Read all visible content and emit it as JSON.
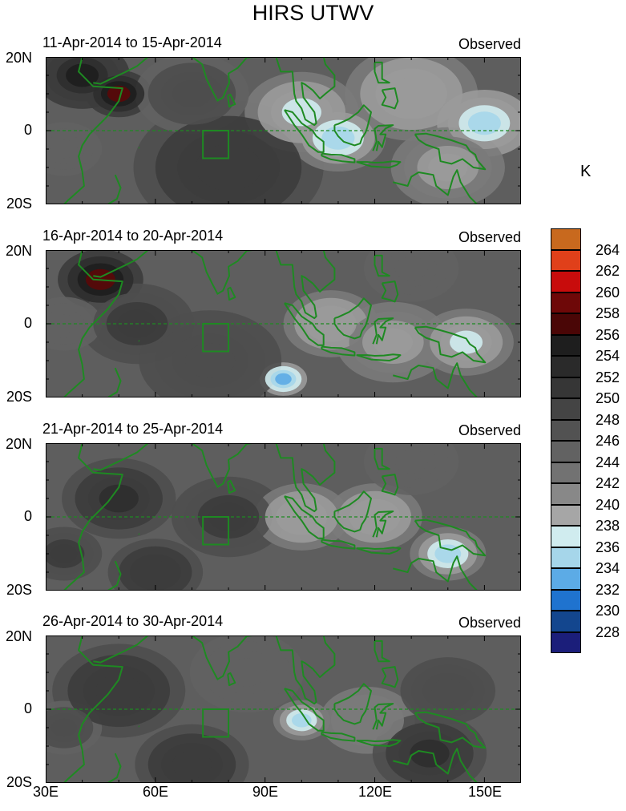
{
  "title": "HIRS UTWV",
  "unit": "K",
  "panels": [
    {
      "period": "11-Apr-2014 to 15-Apr-2014",
      "kind": "Observed"
    },
    {
      "period": "16-Apr-2014 to 20-Apr-2014",
      "kind": "Observed"
    },
    {
      "period": "21-Apr-2014 to 25-Apr-2014",
      "kind": "Observed"
    },
    {
      "period": "26-Apr-2014 to 30-Apr-2014",
      "kind": "Observed"
    }
  ],
  "y_ticks": [
    "20N",
    "0",
    "20S"
  ],
  "x_ticks": [
    "30E",
    "60E",
    "90E",
    "120E",
    "150E"
  ],
  "colorbar": {
    "labels": [
      "264",
      "262",
      "260",
      "258",
      "256",
      "254",
      "252",
      "250",
      "248",
      "246",
      "244",
      "242",
      "240",
      "238",
      "236",
      "234",
      "232",
      "230",
      "228"
    ],
    "colors": [
      "#c8691e",
      "#e0401a",
      "#c80c0c",
      "#6e0808",
      "#4a0606",
      "#1e1e1e",
      "#2a2a2a",
      "#363636",
      "#444444",
      "#525252",
      "#626262",
      "#727272",
      "#888888",
      "#a6a6a6",
      "#d0ecef",
      "#a6d6ea",
      "#5cabe6",
      "#1f73cf",
      "#13468e",
      "#1b1e7a"
    ]
  },
  "map_colors": {
    "coast": "#1e8a22",
    "equator": "#1e8a22"
  }
}
